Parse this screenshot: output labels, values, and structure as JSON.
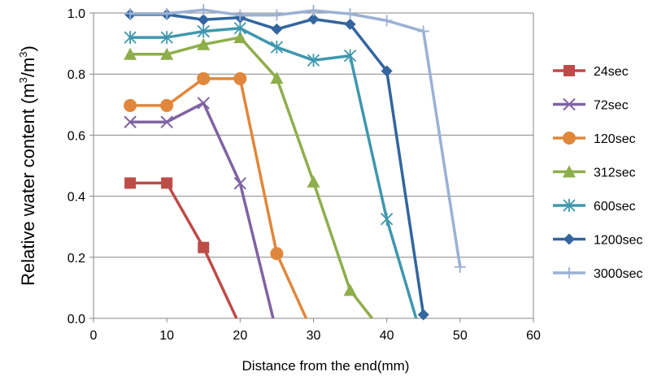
{
  "chart_data": {
    "type": "line",
    "title": "",
    "xlabel": "Distance from the end(mm)",
    "ylabel_main": "Relative water content (m",
    "ylabel_sup1": "3",
    "ylabel_mid": "/m",
    "ylabel_sup2": "3",
    "ylabel_end": ")",
    "xlim": [
      0,
      60
    ],
    "ylim": [
      0,
      1.0
    ],
    "x_ticks": [
      0,
      10,
      20,
      30,
      40,
      50,
      60
    ],
    "x_tick_labels": [
      "0",
      "10",
      "20",
      "30",
      "40",
      "50",
      "60"
    ],
    "y_ticks": [
      0,
      0.2,
      0.4,
      0.6,
      0.8,
      1.0
    ],
    "y_tick_labels": [
      "0.0",
      "0.2",
      "0.4",
      "0.6",
      "0.8",
      "1.0"
    ],
    "grid": "horizontal",
    "legend_position": "right",
    "series": [
      {
        "name": "24sec",
        "color": "#BE4B48",
        "marker": "square",
        "x": [
          5,
          10,
          15,
          19.5
        ],
        "y": [
          0.443,
          0.443,
          0.232,
          0
        ]
      },
      {
        "name": "72sec",
        "color": "#7F63A2",
        "marker": "x",
        "x": [
          5,
          10,
          15,
          20,
          24.5
        ],
        "y": [
          0.643,
          0.643,
          0.705,
          0.442,
          0
        ]
      },
      {
        "name": "120sec",
        "color": "#E0873B",
        "marker": "circle",
        "x": [
          5,
          10,
          15,
          20,
          25,
          29
        ],
        "y": [
          0.697,
          0.697,
          0.785,
          0.785,
          0.212,
          0
        ]
      },
      {
        "name": "312sec",
        "color": "#8EAE4B",
        "marker": "triangle",
        "x": [
          5,
          10,
          15,
          20,
          25,
          30,
          35,
          38
        ],
        "y": [
          0.865,
          0.865,
          0.897,
          0.92,
          0.787,
          0.447,
          0.092,
          0
        ]
      },
      {
        "name": "600sec",
        "color": "#3F97AE",
        "marker": "star",
        "x": [
          5,
          10,
          15,
          20,
          25,
          30,
          35,
          40,
          44
        ],
        "y": [
          0.92,
          0.92,
          0.94,
          0.95,
          0.888,
          0.845,
          0.86,
          0.325,
          0
        ]
      },
      {
        "name": "1200sec",
        "color": "#33659F",
        "marker": "diamond",
        "x": [
          5,
          10,
          15,
          20,
          25,
          30,
          35,
          40,
          45
        ],
        "y": [
          0.995,
          0.995,
          0.978,
          0.985,
          0.947,
          0.98,
          0.963,
          0.81,
          0.012
        ]
      },
      {
        "name": "3000sec",
        "color": "#9AB1D4",
        "marker": "plus",
        "x": [
          5,
          10,
          15,
          20,
          25,
          30,
          35,
          40,
          45,
          50
        ],
        "y": [
          0.998,
          0.998,
          1.01,
          0.993,
          0.993,
          1.008,
          0.997,
          0.975,
          0.94,
          0.168
        ]
      }
    ]
  }
}
